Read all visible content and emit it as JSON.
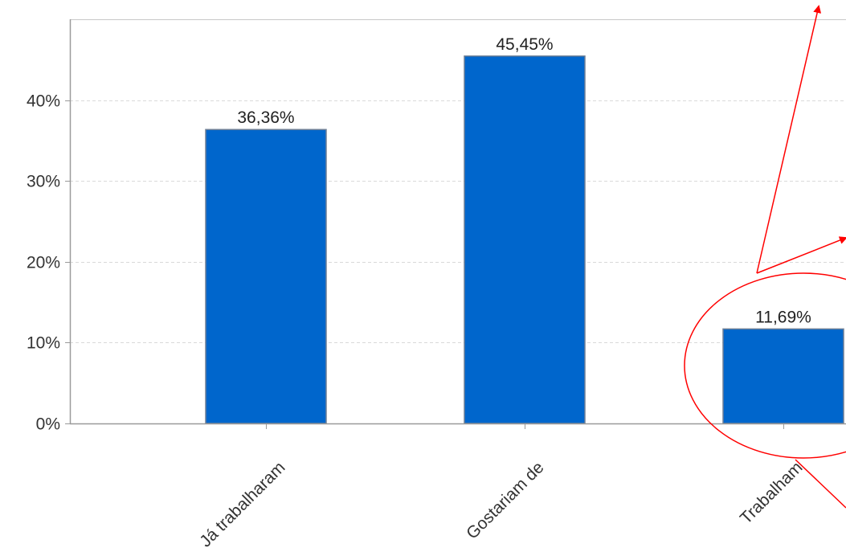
{
  "chart_data": {
    "type": "bar",
    "categories": [
      "Já trabalharam",
      "Gostariam de",
      "Trabalham"
    ],
    "values": [
      36.36,
      45.45,
      11.69
    ],
    "data_labels": [
      "36,36%",
      "45,45%",
      "11,69%"
    ],
    "ylim": [
      0,
      50
    ],
    "y_ticks": [
      0,
      10,
      20,
      30,
      40
    ],
    "y_tick_labels": [
      "0%",
      "10%",
      "20%",
      "30%",
      "40%"
    ],
    "grid": true,
    "bar_color": "#0066cc",
    "bar_edge_color": "#6d7f96",
    "grid_color": "#d9d9d9",
    "axis_color": "#9a9a9a",
    "annotation_color": "#ff0000",
    "annotation": {
      "shape": "circle",
      "highlighted_category": "Trabalham"
    }
  }
}
